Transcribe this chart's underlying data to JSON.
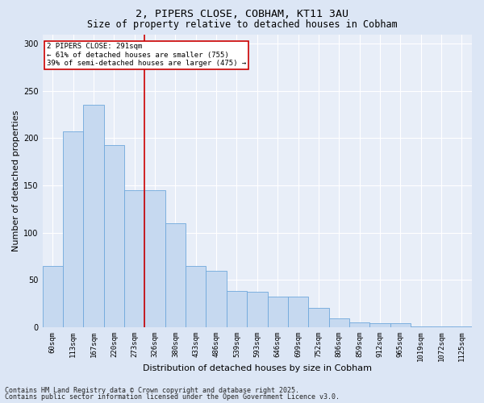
{
  "title1": "2, PIPERS CLOSE, COBHAM, KT11 3AU",
  "title2": "Size of property relative to detached houses in Cobham",
  "xlabel": "Distribution of detached houses by size in Cobham",
  "ylabel": "Number of detached properties",
  "categories": [
    "60sqm",
    "113sqm",
    "167sqm",
    "220sqm",
    "273sqm",
    "326sqm",
    "380sqm",
    "433sqm",
    "486sqm",
    "539sqm",
    "593sqm",
    "646sqm",
    "699sqm",
    "752sqm",
    "806sqm",
    "859sqm",
    "912sqm",
    "965sqm",
    "1019sqm",
    "1072sqm",
    "1125sqm"
  ],
  "values": [
    65,
    207,
    235,
    193,
    145,
    145,
    110,
    65,
    60,
    38,
    37,
    32,
    32,
    20,
    9,
    5,
    4,
    4,
    1,
    1,
    1
  ],
  "bar_color": "#c6d9f0",
  "bar_edge_color": "#6fa8dc",
  "vline_x": 4.5,
  "vline_color": "#cc0000",
  "annotation_text": "2 PIPERS CLOSE: 291sqm\n← 61% of detached houses are smaller (755)\n39% of semi-detached houses are larger (475) →",
  "annotation_box_color": "#ffffff",
  "annotation_box_edge": "#cc0000",
  "ylim": [
    0,
    310
  ],
  "yticks": [
    0,
    50,
    100,
    150,
    200,
    250,
    300
  ],
  "footer1": "Contains HM Land Registry data © Crown copyright and database right 2025.",
  "footer2": "Contains public sector information licensed under the Open Government Licence v3.0.",
  "background_color": "#dce6f5",
  "plot_bg_color": "#e8eef8",
  "grid_color": "#ffffff",
  "title_fontsize": 9.5,
  "subtitle_fontsize": 8.5,
  "tick_fontsize": 6.5,
  "label_fontsize": 8,
  "footer_fontsize": 6
}
